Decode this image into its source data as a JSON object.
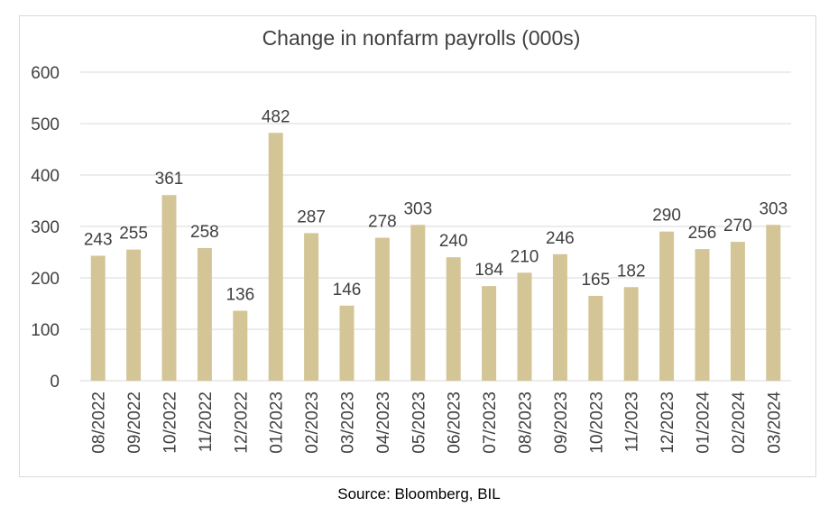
{
  "chart_data": {
    "type": "bar",
    "title": "Change in nonfarm payrolls (000s)",
    "xlabel": "",
    "ylabel": "",
    "categories": [
      "08/2022",
      "09/2022",
      "10/2022",
      "11/2022",
      "12/2022",
      "01/2023",
      "02/2023",
      "03/2023",
      "04/2023",
      "05/2023",
      "06/2023",
      "07/2023",
      "08/2023",
      "09/2023",
      "10/2023",
      "11/2023",
      "12/2023",
      "01/2024",
      "02/2024",
      "03/2024"
    ],
    "values": [
      243,
      255,
      361,
      258,
      136,
      482,
      287,
      146,
      278,
      303,
      240,
      184,
      210,
      246,
      165,
      182,
      290,
      256,
      270,
      303
    ],
    "data_labels": [
      "243",
      "255",
      "361",
      "258",
      "136",
      "482",
      "287",
      "146",
      "278",
      "303",
      "240",
      "184",
      "210",
      "246",
      "165",
      "182",
      "290",
      "256",
      "270",
      "303"
    ],
    "ylim": [
      0,
      600
    ],
    "yticks": [
      0,
      100,
      200,
      300,
      400,
      500,
      600
    ],
    "ytick_labels": [
      "0",
      "100",
      "200",
      "300",
      "400",
      "500",
      "600"
    ],
    "grid": true,
    "legend": "none",
    "colors": {
      "bar": "#d4c596",
      "grid": "#d9d9d9",
      "text": "#404040"
    }
  },
  "source_note": "Source: Bloomberg, BIL"
}
